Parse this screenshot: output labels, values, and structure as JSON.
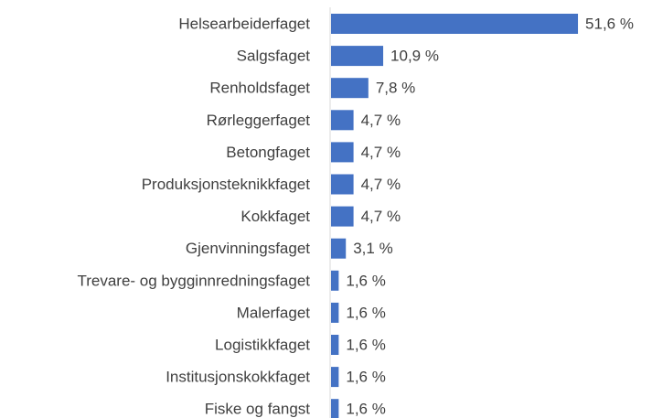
{
  "chart_data": {
    "type": "hbar",
    "categories": [
      "Helsearbeiderfaget",
      "Salgsfaget",
      "Renholdsfaget",
      "Rørleggerfaget",
      "Betongfaget",
      "Produksjonsteknikkfaget",
      "Kokkfaget",
      "Gjenvinningsfaget",
      "Trevare- og bygginnredningsfaget",
      "Malerfaget",
      "Logistikkfaget",
      "Institusjonskokkfaget",
      "Fiske og fangst"
    ],
    "values": [
      51.6,
      10.9,
      7.8,
      4.7,
      4.7,
      4.7,
      4.7,
      3.1,
      1.6,
      1.6,
      1.6,
      1.6,
      1.6
    ],
    "value_labels": [
      "51,6 %",
      "10,9 %",
      "7,8 %",
      "4,7 %",
      "4,7 %",
      "4,7 %",
      "4,7 %",
      "3,1 %",
      "1,6 %",
      "1,6 %",
      "1,6 %",
      "1,6 %",
      "1,6 %"
    ],
    "color": "#4472c4",
    "xlim": [
      0,
      60
    ]
  }
}
